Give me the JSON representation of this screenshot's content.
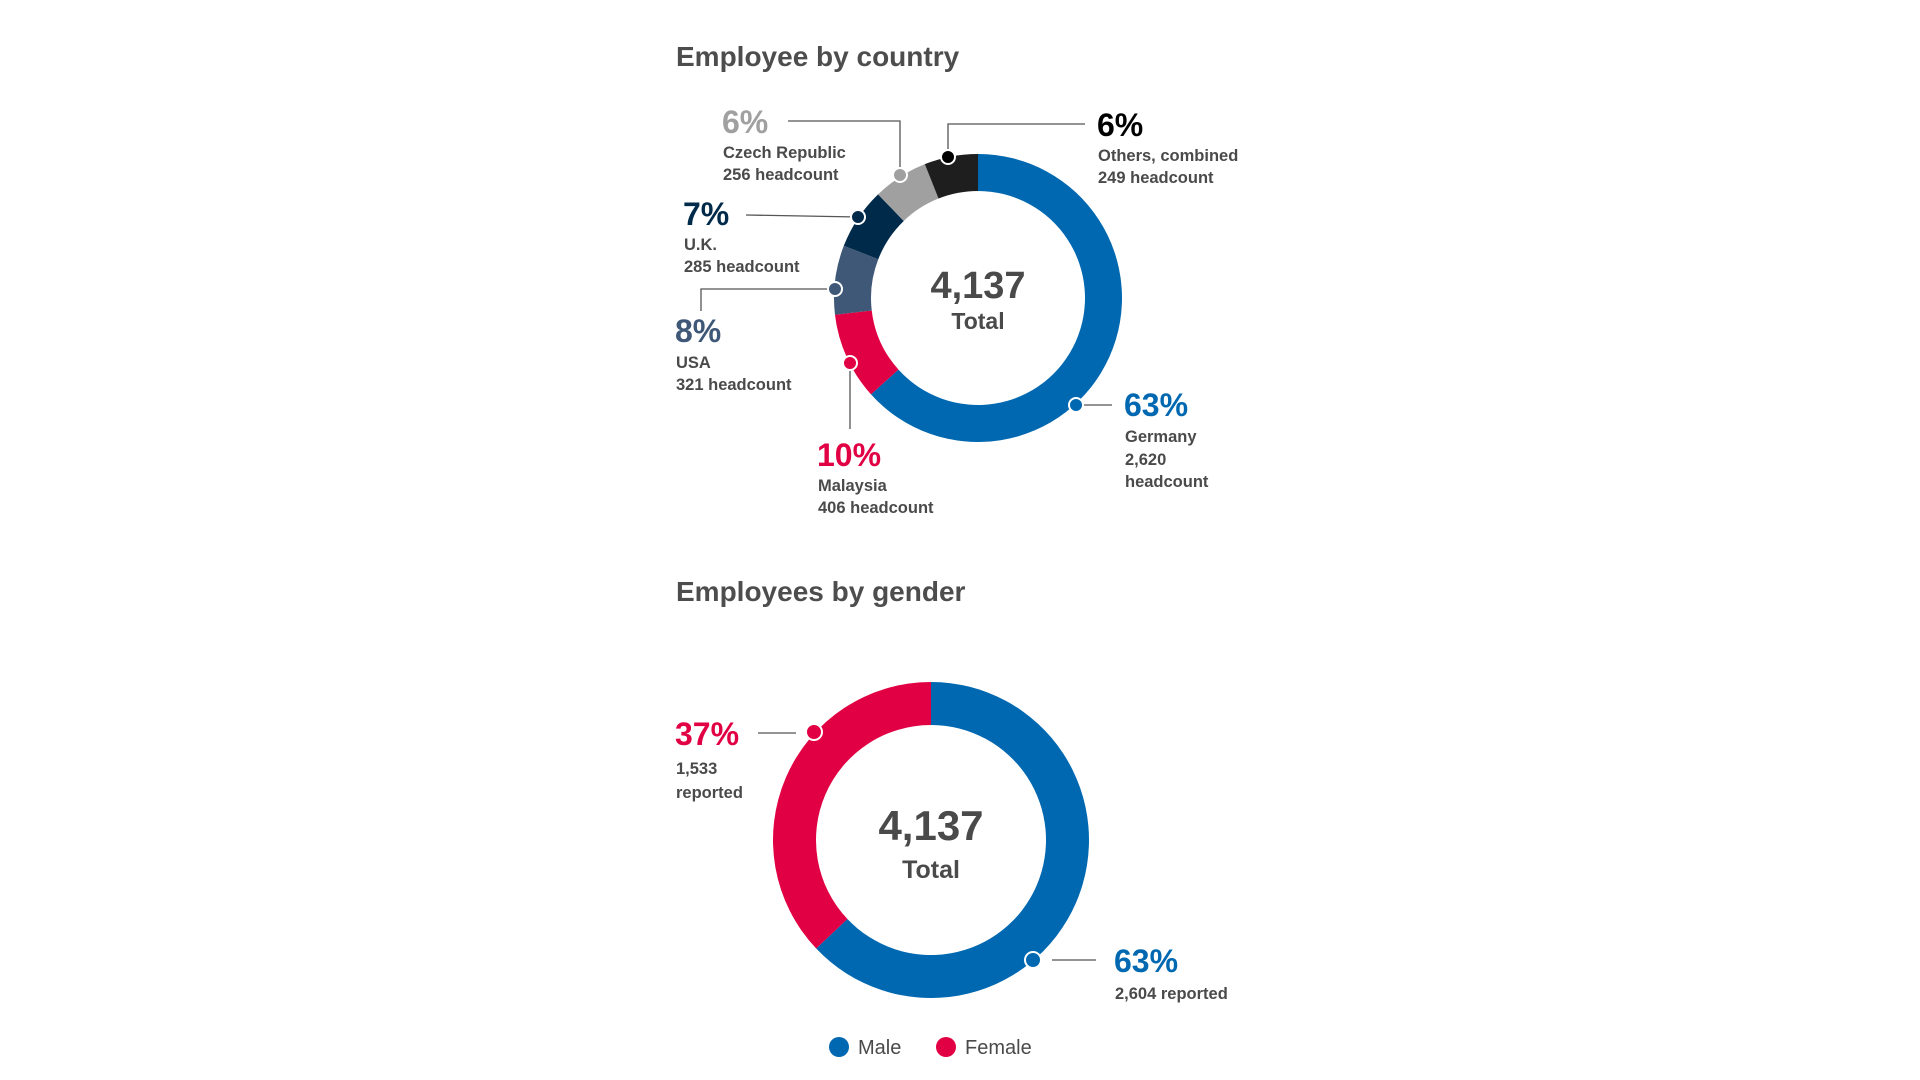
{
  "chart_data": [
    {
      "type": "pie",
      "variant": "donut",
      "title": "Employee by country",
      "center_value": "4,137",
      "center_label": "Total",
      "slices": [
        {
          "name": "Germany",
          "percent_label": "63%",
          "count_label": "2,620",
          "count_suffix": "headcount",
          "value": 2620,
          "color": "#0068b1"
        },
        {
          "name": "Malaysia",
          "percent_label": "10%",
          "count_label": "406 headcount",
          "value": 406,
          "color": "#e10043"
        },
        {
          "name": "USA",
          "percent_label": "8%",
          "count_label": "321 headcount",
          "value": 321,
          "color": "#3f5878"
        },
        {
          "name": "U.K.",
          "percent_label": "7%",
          "count_label": "285 headcount",
          "value": 285,
          "color": "#002a4a"
        },
        {
          "name": "Czech Republic",
          "percent_label": "6%",
          "count_label": "256 headcount",
          "value": 256,
          "color": "#a0a0a0"
        },
        {
          "name": "Others, combined",
          "percent_label": "6%",
          "count_label": "249 headcount",
          "value": 249,
          "color": "#1e1e1e"
        }
      ]
    },
    {
      "type": "pie",
      "variant": "donut",
      "title": "Employees by gender",
      "center_value": "4,137",
      "center_label": "Total",
      "slices": [
        {
          "name": "Male",
          "percent_label": "63%",
          "count_label": "2,604 reported",
          "value": 2604,
          "color": "#0068b1"
        },
        {
          "name": "Female",
          "percent_label": "37%",
          "count_label": "1,533",
          "count_suffix": "reported",
          "value": 1533,
          "color": "#e10043"
        }
      ],
      "legend": [
        "Male",
        "Female"
      ],
      "legend_position": "bottom"
    }
  ]
}
